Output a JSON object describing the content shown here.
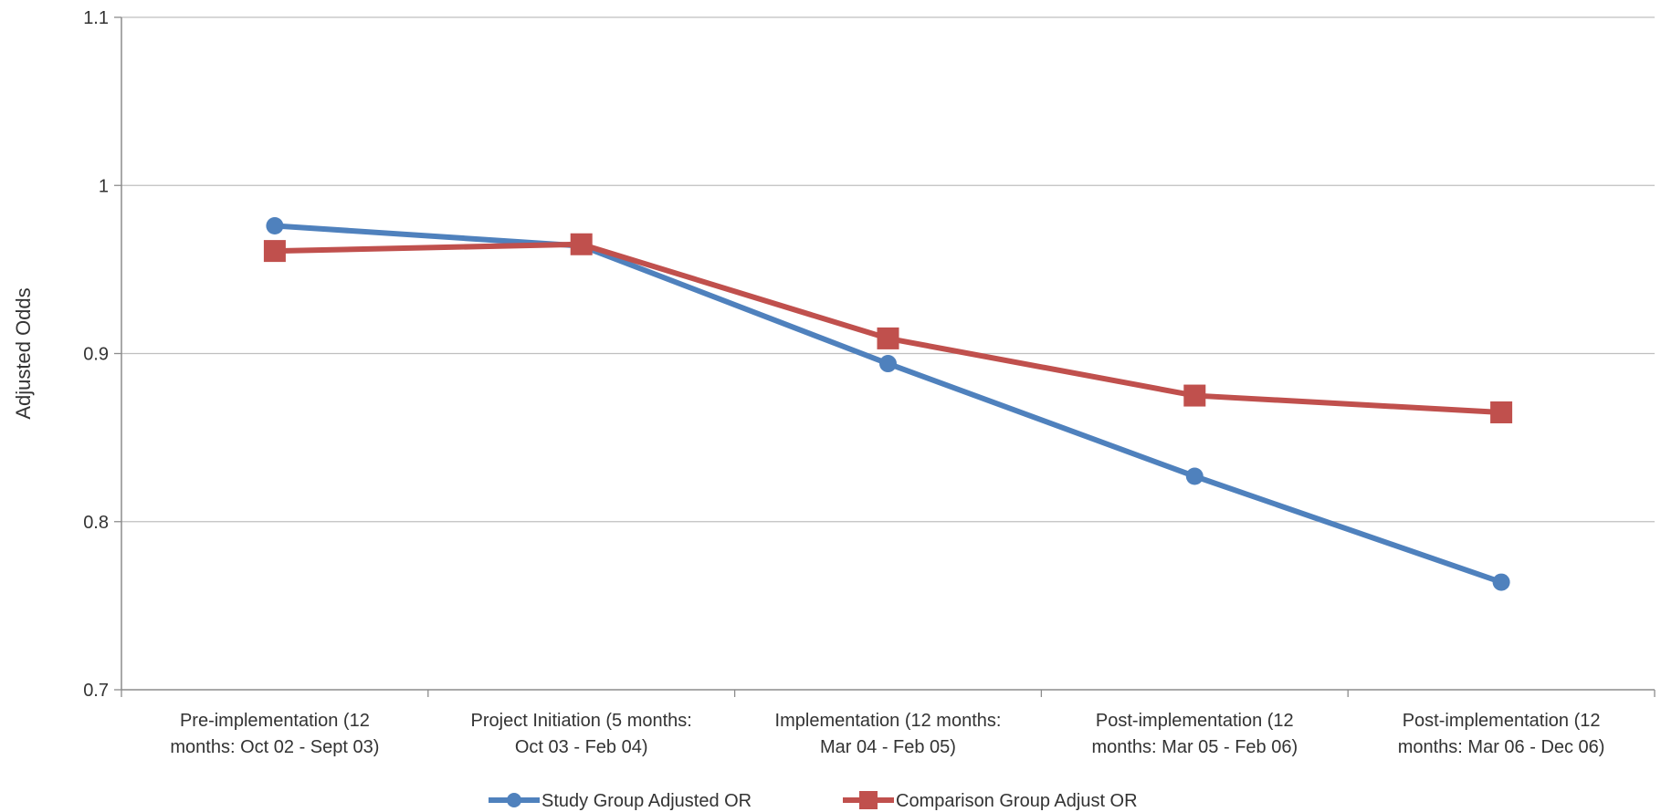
{
  "chart_data": {
    "type": "line",
    "title": "",
    "xlabel": "",
    "ylabel": "Adjusted Odds",
    "ylim": [
      0.7,
      1.1
    ],
    "yticks": [
      "0.7",
      "0.8",
      "0.9",
      "1",
      "1.1"
    ],
    "grid": true,
    "legend_position": "bottom",
    "categories": [
      [
        "Pre-implementation (12",
        "months: Oct 02 - Sept 03)"
      ],
      [
        "Project Initiation (5 months:",
        "Oct 03 - Feb 04)"
      ],
      [
        "Implementation (12 months:",
        "Mar 04 - Feb 05)"
      ],
      [
        "Post-implementation (12",
        "months: Mar 05 - Feb 06)"
      ],
      [
        "Post-implementation (12",
        "months: Mar 06 - Dec 06)"
      ]
    ],
    "series": [
      {
        "name": "Study Group Adjusted OR",
        "color": "#4f81bd",
        "marker": "circle",
        "values": [
          0.976,
          0.964,
          0.894,
          0.827,
          0.764
        ]
      },
      {
        "name": "Comparison Group Adjust OR",
        "color": "#c0504d",
        "marker": "square",
        "values": [
          0.961,
          0.965,
          0.909,
          0.875,
          0.865
        ]
      }
    ]
  }
}
